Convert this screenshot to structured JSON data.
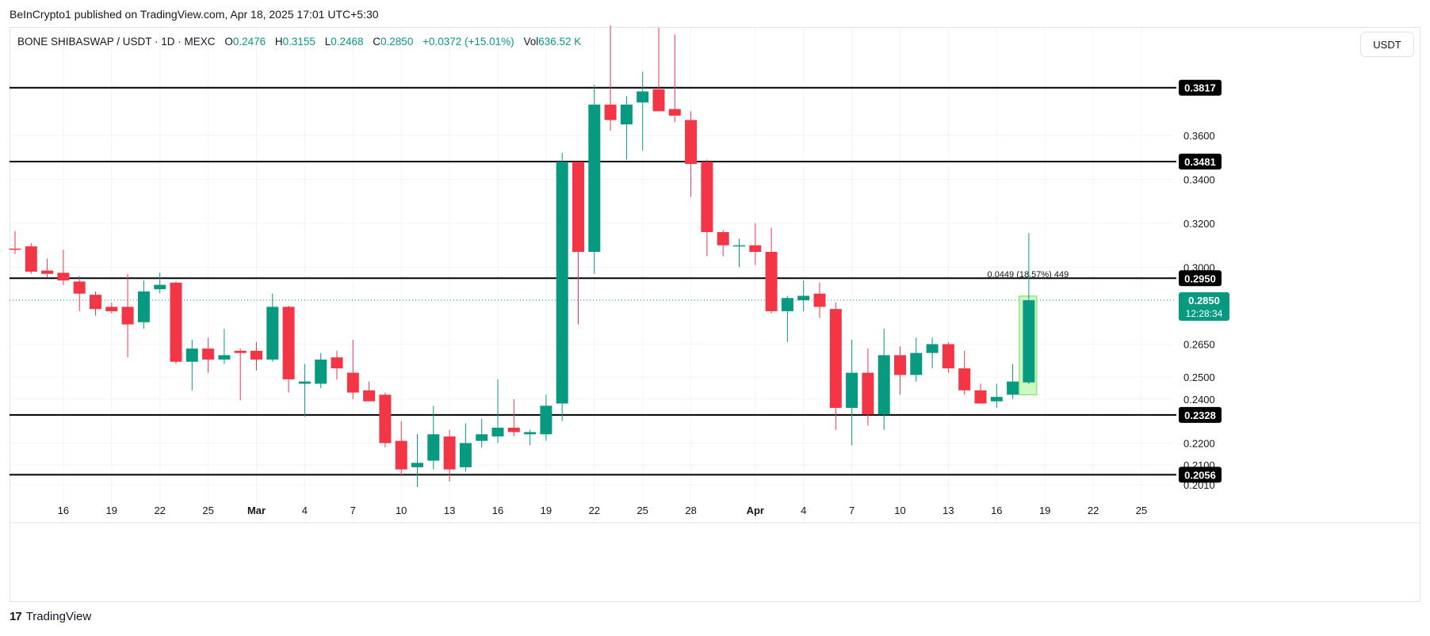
{
  "publish_note": "BeInCrypto1 published on TradingView.com, Apr 18, 2025 17:01 UTC+5:30",
  "legend": {
    "symbol": "BONE SHIBASWAP / USDT · 1D · MEXC",
    "open_label": "O",
    "open": "0.2476",
    "high_label": "H",
    "high": "0.3155",
    "low_label": "L",
    "low": "0.2468",
    "close_label": "C",
    "close": "0.2850",
    "change": "+0.0372 (+15.01%)",
    "vol_label": "Vol",
    "vol": "636.52 K"
  },
  "currency_button": "USDT",
  "footer": {
    "logo": "17",
    "brand": "TradingView"
  },
  "colors": {
    "up": "#089981",
    "down": "#f23645",
    "level": "#000000",
    "measure": "#b7f5a8"
  },
  "chart_data": {
    "type": "candlestick",
    "ylim": [
      0.196,
      0.409
    ],
    "y_ticks": [
      "0.3600",
      "0.3400",
      "0.3200",
      "0.3000",
      "0.2650",
      "0.2500",
      "0.2400",
      "0.2200",
      "0.2100",
      "0.2010"
    ],
    "x_ticks": [
      "16",
      "19",
      "22",
      "25",
      "Mar",
      "4",
      "7",
      "10",
      "13",
      "16",
      "19",
      "22",
      "25",
      "28",
      "Apr",
      "4",
      "7",
      "10",
      "13",
      "16",
      "19",
      "22",
      "25"
    ],
    "x_tick_bars": [
      3,
      6,
      9,
      12,
      15,
      18,
      21,
      24,
      27,
      30,
      33,
      36,
      39,
      42,
      46,
      49,
      52,
      55,
      58,
      61,
      64,
      67,
      70
    ],
    "levels": [
      {
        "label": "0.3817",
        "value": 0.3817
      },
      {
        "label": "0.3481",
        "value": 0.3481
      },
      {
        "label": "0.2950",
        "value": 0.295
      },
      {
        "label": "0.2328",
        "value": 0.2328
      },
      {
        "label": "0.2056",
        "value": 0.2056
      }
    ],
    "current_price": {
      "label": "0.2850",
      "countdown": "12:28:34",
      "value": 0.285
    },
    "measure": {
      "label": "0.0449 (18.57%) 449",
      "from": 0.242,
      "to": 0.2869
    },
    "candles": [
      {
        "o": 0.3085,
        "h": 0.3165,
        "l": 0.306,
        "c": 0.308
      },
      {
        "o": 0.3095,
        "h": 0.311,
        "l": 0.297,
        "c": 0.298
      },
      {
        "o": 0.2985,
        "h": 0.304,
        "l": 0.2955,
        "c": 0.297
      },
      {
        "o": 0.2975,
        "h": 0.308,
        "l": 0.292,
        "c": 0.294
      },
      {
        "o": 0.2935,
        "h": 0.296,
        "l": 0.28,
        "c": 0.288
      },
      {
        "o": 0.2875,
        "h": 0.289,
        "l": 0.278,
        "c": 0.281
      },
      {
        "o": 0.282,
        "h": 0.284,
        "l": 0.279,
        "c": 0.28
      },
      {
        "o": 0.282,
        "h": 0.297,
        "l": 0.259,
        "c": 0.274
      },
      {
        "o": 0.275,
        "h": 0.294,
        "l": 0.272,
        "c": 0.289
      },
      {
        "o": 0.29,
        "h": 0.2975,
        "l": 0.288,
        "c": 0.292
      },
      {
        "o": 0.293,
        "h": 0.2935,
        "l": 0.256,
        "c": 0.257
      },
      {
        "o": 0.257,
        "h": 0.267,
        "l": 0.244,
        "c": 0.263
      },
      {
        "o": 0.263,
        "h": 0.268,
        "l": 0.252,
        "c": 0.258
      },
      {
        "o": 0.258,
        "h": 0.272,
        "l": 0.256,
        "c": 0.26
      },
      {
        "o": 0.262,
        "h": 0.263,
        "l": 0.2395,
        "c": 0.261
      },
      {
        "o": 0.262,
        "h": 0.266,
        "l": 0.253,
        "c": 0.258
      },
      {
        "o": 0.258,
        "h": 0.288,
        "l": 0.257,
        "c": 0.282
      },
      {
        "o": 0.282,
        "h": 0.2825,
        "l": 0.243,
        "c": 0.249
      },
      {
        "o": 0.247,
        "h": 0.256,
        "l": 0.232,
        "c": 0.248
      },
      {
        "o": 0.247,
        "h": 0.261,
        "l": 0.245,
        "c": 0.258
      },
      {
        "o": 0.259,
        "h": 0.262,
        "l": 0.249,
        "c": 0.254
      },
      {
        "o": 0.252,
        "h": 0.267,
        "l": 0.24,
        "c": 0.243
      },
      {
        "o": 0.244,
        "h": 0.248,
        "l": 0.239,
        "c": 0.239
      },
      {
        "o": 0.242,
        "h": 0.243,
        "l": 0.218,
        "c": 0.22
      },
      {
        "o": 0.221,
        "h": 0.23,
        "l": 0.205,
        "c": 0.208
      },
      {
        "o": 0.209,
        "h": 0.224,
        "l": 0.2,
        "c": 0.211
      },
      {
        "o": 0.212,
        "h": 0.237,
        "l": 0.208,
        "c": 0.224
      },
      {
        "o": 0.223,
        "h": 0.226,
        "l": 0.2025,
        "c": 0.208
      },
      {
        "o": 0.209,
        "h": 0.229,
        "l": 0.207,
        "c": 0.22
      },
      {
        "o": 0.221,
        "h": 0.231,
        "l": 0.218,
        "c": 0.224
      },
      {
        "o": 0.223,
        "h": 0.249,
        "l": 0.22,
        "c": 0.227
      },
      {
        "o": 0.227,
        "h": 0.24,
        "l": 0.223,
        "c": 0.225
      },
      {
        "o": 0.224,
        "h": 0.226,
        "l": 0.219,
        "c": 0.225
      },
      {
        "o": 0.224,
        "h": 0.242,
        "l": 0.221,
        "c": 0.237
      },
      {
        "o": 0.238,
        "h": 0.352,
        "l": 0.23,
        "c": 0.348
      },
      {
        "o": 0.348,
        "h": 0.348,
        "l": 0.274,
        "c": 0.307
      },
      {
        "o": 0.307,
        "h": 0.383,
        "l": 0.297,
        "c": 0.374
      },
      {
        "o": 0.374,
        "h": 0.41,
        "l": 0.362,
        "c": 0.367
      },
      {
        "o": 0.365,
        "h": 0.378,
        "l": 0.349,
        "c": 0.374
      },
      {
        "o": 0.375,
        "h": 0.389,
        "l": 0.353,
        "c": 0.38
      },
      {
        "o": 0.381,
        "h": 0.409,
        "l": 0.371,
        "c": 0.371
      },
      {
        "o": 0.372,
        "h": 0.406,
        "l": 0.366,
        "c": 0.369
      },
      {
        "o": 0.367,
        "h": 0.371,
        "l": 0.332,
        "c": 0.347
      },
      {
        "o": 0.348,
        "h": 0.349,
        "l": 0.305,
        "c": 0.316
      },
      {
        "o": 0.316,
        "h": 0.317,
        "l": 0.305,
        "c": 0.31
      },
      {
        "o": 0.31,
        "h": 0.313,
        "l": 0.3,
        "c": 0.31
      },
      {
        "o": 0.31,
        "h": 0.32,
        "l": 0.301,
        "c": 0.307
      },
      {
        "o": 0.307,
        "h": 0.318,
        "l": 0.279,
        "c": 0.28
      },
      {
        "o": 0.28,
        "h": 0.287,
        "l": 0.266,
        "c": 0.286
      },
      {
        "o": 0.285,
        "h": 0.294,
        "l": 0.28,
        "c": 0.287
      },
      {
        "o": 0.288,
        "h": 0.293,
        "l": 0.277,
        "c": 0.282
      },
      {
        "o": 0.281,
        "h": 0.284,
        "l": 0.226,
        "c": 0.236
      },
      {
        "o": 0.236,
        "h": 0.267,
        "l": 0.219,
        "c": 0.252
      },
      {
        "o": 0.252,
        "h": 0.263,
        "l": 0.228,
        "c": 0.233
      },
      {
        "o": 0.233,
        "h": 0.272,
        "l": 0.226,
        "c": 0.26
      },
      {
        "o": 0.26,
        "h": 0.264,
        "l": 0.242,
        "c": 0.251
      },
      {
        "o": 0.251,
        "h": 0.268,
        "l": 0.248,
        "c": 0.261
      },
      {
        "o": 0.261,
        "h": 0.268,
        "l": 0.254,
        "c": 0.265
      },
      {
        "o": 0.265,
        "h": 0.266,
        "l": 0.252,
        "c": 0.254
      },
      {
        "o": 0.254,
        "h": 0.262,
        "l": 0.242,
        "c": 0.244
      },
      {
        "o": 0.244,
        "h": 0.247,
        "l": 0.238,
        "c": 0.238
      },
      {
        "o": 0.239,
        "h": 0.247,
        "l": 0.236,
        "c": 0.241
      },
      {
        "o": 0.242,
        "h": 0.256,
        "l": 0.24,
        "c": 0.248
      },
      {
        "o": 0.2476,
        "h": 0.3155,
        "l": 0.2468,
        "c": 0.285
      }
    ]
  }
}
